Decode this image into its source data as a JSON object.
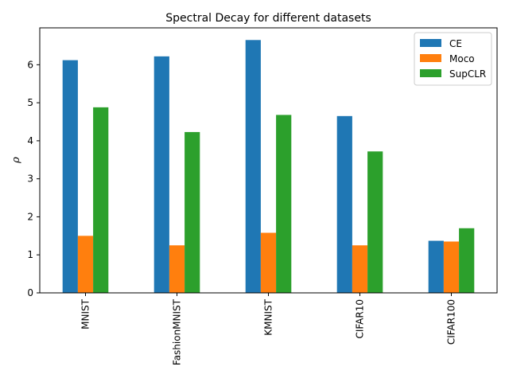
{
  "chart_data": {
    "type": "bar",
    "title": "Spectral Decay for different datasets",
    "xlabel": "",
    "ylabel": "ρ",
    "categories": [
      "MNIST",
      "FashionMNIST",
      "KMNIST",
      "CIFAR10",
      "CIFAR100"
    ],
    "series": [
      {
        "name": "CE",
        "color": "#1f77b4",
        "values": [
          6.12,
          6.22,
          6.65,
          4.65,
          1.37
        ]
      },
      {
        "name": "Moco",
        "color": "#ff7f0e",
        "values": [
          1.5,
          1.25,
          1.58,
          1.25,
          1.35
        ]
      },
      {
        "name": "SupCLR",
        "color": "#2ca02c",
        "values": [
          4.88,
          4.23,
          4.68,
          3.72,
          1.7
        ]
      }
    ],
    "ylim": [
      0,
      6.97
    ],
    "yticks": [
      0,
      1,
      2,
      3,
      4,
      5,
      6
    ],
    "legend_position": "top-right",
    "grid": false
  }
}
